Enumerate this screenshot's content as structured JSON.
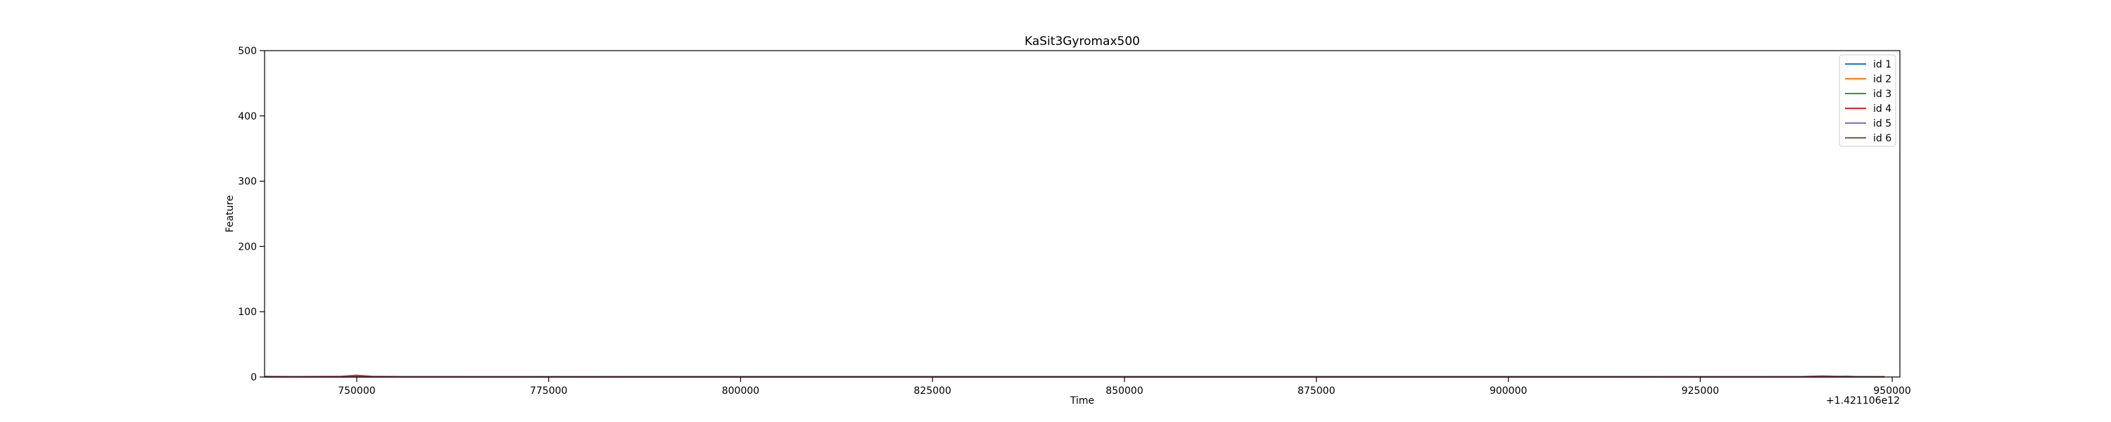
{
  "chart_data": {
    "type": "line",
    "title": "KaSit3Gyromax500",
    "xlabel": "Time",
    "ylabel": "Feature",
    "x_offset_label": "+1.421106e12",
    "xlim": [
      738000,
      951000
    ],
    "ylim": [
      0,
      500
    ],
    "x_ticks": [
      {
        "value": 750000,
        "label": "750000"
      },
      {
        "value": 775000,
        "label": "775000"
      },
      {
        "value": 800000,
        "label": "800000"
      },
      {
        "value": 825000,
        "label": "825000"
      },
      {
        "value": 850000,
        "label": "850000"
      },
      {
        "value": 875000,
        "label": "875000"
      },
      {
        "value": 900000,
        "label": "900000"
      },
      {
        "value": 925000,
        "label": "925000"
      },
      {
        "value": 950000,
        "label": "950000"
      }
    ],
    "y_ticks": [
      {
        "value": 0,
        "label": "0"
      },
      {
        "value": 100,
        "label": "100"
      },
      {
        "value": 200,
        "label": "200"
      },
      {
        "value": 300,
        "label": "300"
      },
      {
        "value": 400,
        "label": "400"
      },
      {
        "value": 500,
        "label": "500"
      }
    ],
    "grid": false,
    "legend_position": "top-right",
    "series": [
      {
        "name": "id 1",
        "color": "#1f77b4",
        "points": [
          [
            738000,
            0.5
          ],
          [
            745000,
            0.4
          ],
          [
            760000,
            0.3
          ],
          [
            800000,
            0.3
          ],
          [
            850000,
            0.3
          ],
          [
            900000,
            0.3
          ],
          [
            940000,
            0.4
          ],
          [
            949000,
            0.5
          ]
        ]
      },
      {
        "name": "id 2",
        "color": "#ff7f0e",
        "points": [
          [
            738000,
            0.3
          ],
          [
            760000,
            0.2
          ],
          [
            800000,
            0.2
          ],
          [
            850000,
            0.2
          ],
          [
            900000,
            0.2
          ],
          [
            949000,
            0.3
          ]
        ]
      },
      {
        "name": "id 3",
        "color": "#2ca02c",
        "points": [
          [
            738000,
            0.2
          ],
          [
            800000,
            0.2
          ],
          [
            850000,
            0.2
          ],
          [
            900000,
            0.2
          ],
          [
            949000,
            0.2
          ]
        ]
      },
      {
        "name": "id 4",
        "color": "#d62728",
        "points": [
          [
            738000,
            0.8
          ],
          [
            742000,
            0.6
          ],
          [
            748000,
            1.0
          ],
          [
            750000,
            2.5
          ],
          [
            752000,
            1.0
          ],
          [
            756000,
            0.5
          ],
          [
            800000,
            0.4
          ],
          [
            850000,
            0.4
          ],
          [
            900000,
            0.4
          ],
          [
            938000,
            0.5
          ],
          [
            941000,
            1.5
          ],
          [
            944000,
            0.6
          ],
          [
            949000,
            0.5
          ]
        ]
      },
      {
        "name": "id 5",
        "color": "#9467bd",
        "points": [
          [
            738000,
            0.4
          ],
          [
            800000,
            0.3
          ],
          [
            850000,
            0.3
          ],
          [
            900000,
            0.3
          ],
          [
            941000,
            0.4
          ],
          [
            944000,
            1.2
          ],
          [
            946000,
            0.4
          ],
          [
            949000,
            0.4
          ]
        ]
      },
      {
        "name": "id 6",
        "color": "#8c564b",
        "points": [
          [
            738000,
            0.3
          ],
          [
            800000,
            0.3
          ],
          [
            850000,
            0.3
          ],
          [
            900000,
            0.3
          ],
          [
            949000,
            0.3
          ]
        ]
      }
    ]
  }
}
